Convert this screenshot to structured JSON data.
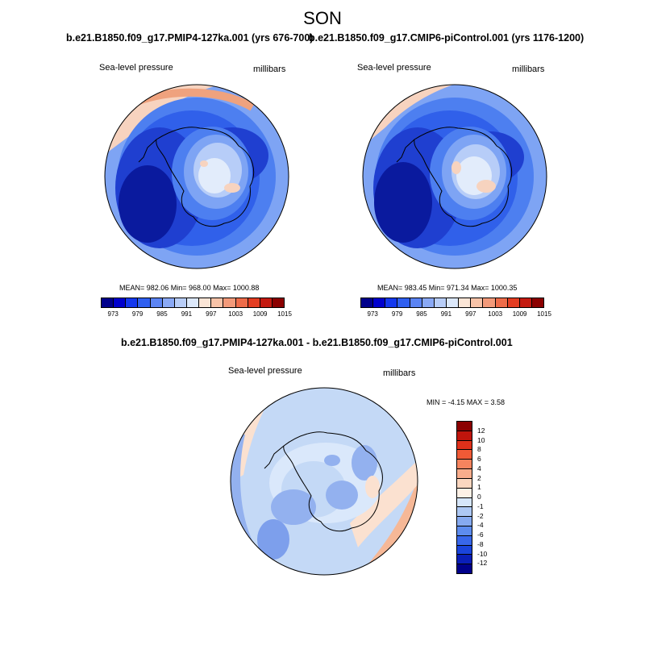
{
  "season": "SON",
  "panels": [
    {
      "title": "b.e21.B1850.f09_g17.PMIP4-127ka.001 (yrs 676-700)",
      "variable": "Sea-level pressure",
      "units": "millibars",
      "stats": "MEAN= 982.06  Min= 968.00  Max= 1000.88"
    },
    {
      "title": "b.e21.B1850.f09_g17.CMIP6-piControl.001 (yrs 1176-1200)",
      "variable": "Sea-level pressure",
      "units": "millibars",
      "stats": "MEAN= 983.45  Min= 971.34  Max= 1000.35"
    }
  ],
  "diff": {
    "title": "b.e21.B1850.f09_g17.PMIP4-127ka.001 - b.e21.B1850.f09_g17.CMIP6-piControl.001",
    "variable": "Sea-level pressure",
    "units": "millibars",
    "minmax": "MIN =  -4.15 MAX =   3.58"
  },
  "colorbar_top": {
    "colors": [
      "#00008b",
      "#0000cd",
      "#1438ee",
      "#2f5ff0",
      "#5b84f3",
      "#8aa9f5",
      "#b8cdf7",
      "#dce8fa",
      "#fbe5d6",
      "#f8c3a8",
      "#f39a7a",
      "#ee6c4a",
      "#e33d22",
      "#c41a10",
      "#8b0000"
    ],
    "labels": [
      "973",
      "979",
      "985",
      "991",
      "997",
      "1003",
      "1009",
      "1015"
    ]
  },
  "colorbar_diff": {
    "colors": [
      "#8b0000",
      "#c0150c",
      "#e0301a",
      "#f05a36",
      "#f6845e",
      "#f9ad8c",
      "#fbd7c0",
      "#fdf1e6",
      "#d6e6fa",
      "#adc8f4",
      "#86aaf0",
      "#5d8cee",
      "#3867ea",
      "#1a44dc",
      "#0a1eb8",
      "#00008b"
    ],
    "labels": [
      "12",
      "10",
      "8",
      "6",
      "4",
      "2",
      "1",
      "0",
      "-1",
      "-2",
      "-4",
      "-6",
      "-8",
      "-10",
      "-12"
    ]
  },
  "map_colors": {
    "deep": "#0a1a9e",
    "dark": "#1f3fd0",
    "mid": "#3060ea",
    "medium": "#4d7ff0",
    "light": "#7ea4f4",
    "pale": "#b7cdf8",
    "white": "#e2ecfb",
    "peach": "#f7d3bf",
    "salmon": "#efa27e",
    "diff_blue": "#93b1ef",
    "diff_blue2": "#7d9fec",
    "diff_light": "#c4d9f6",
    "diff_pale": "#dae8fb",
    "diff_orange": "#f6b897",
    "diff_peach": "#fbe1d0"
  }
}
